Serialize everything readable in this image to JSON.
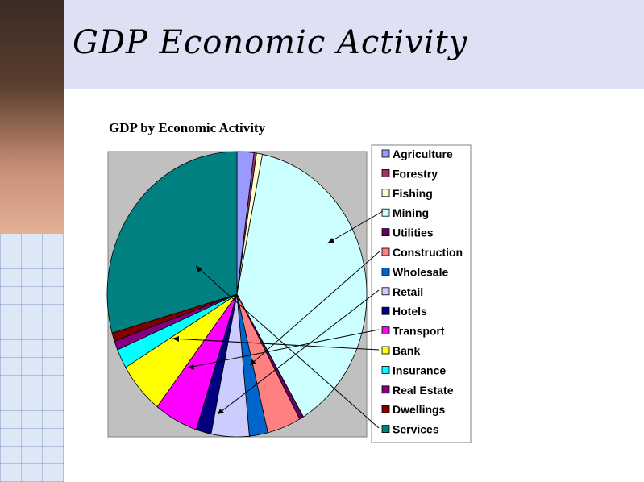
{
  "slide": {
    "title": "GDP Economic Activity"
  },
  "chart_data": {
    "type": "pie",
    "title": "GDP by Economic Activity",
    "legend_position": "right",
    "categories": [
      "Agriculture",
      "Forestry",
      "Fishing",
      "Mining",
      "Utilities",
      "Construction",
      "Wholesale",
      "Retail",
      "Hotels",
      "Transport",
      "Bank",
      "Insurance",
      "Real Estate",
      "Dwellings",
      "Services"
    ],
    "values": [
      2.0,
      0.3,
      0.7,
      36.5,
      0.5,
      4.0,
      2.2,
      4.5,
      1.8,
      5.2,
      5.6,
      2.1,
      1.0,
      0.9,
      28.0
    ],
    "colors": [
      "#9999ff",
      "#993366",
      "#ffffcc",
      "#ccffff",
      "#660066",
      "#ff8080",
      "#0066cc",
      "#ccccff",
      "#000080",
      "#ff00ff",
      "#ffff00",
      "#00ffff",
      "#800080",
      "#800000",
      "#008080"
    ]
  }
}
